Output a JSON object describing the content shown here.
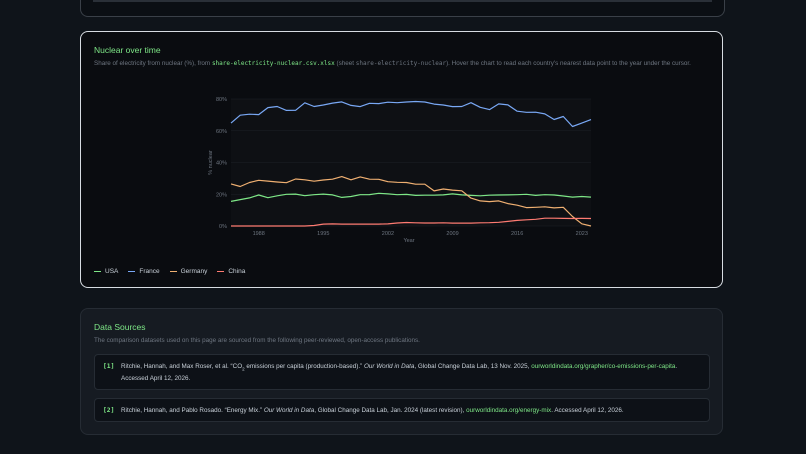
{
  "nuclear_card": {
    "title": "Nuclear over time",
    "desc_prefix": "Share of electricity from nuclear (%), from ",
    "desc_file": "share-electricity-nuclear.csv.xlsx",
    "desc_sheet_open": " (sheet ",
    "desc_sheet": "share-electricity-nuclear",
    "desc_suffix": "). Hover the chart to read each country's nearest data point to the year under the cursor."
  },
  "chart_data": {
    "type": "line",
    "xlabel": "Year",
    "ylabel": "% nuclear",
    "xlim": [
      1985,
      2024
    ],
    "ylim": [
      0,
      80
    ],
    "x_ticks": [
      1988,
      1995,
      2002,
      2009,
      2016,
      2023
    ],
    "y_ticks": [
      0,
      20,
      40,
      60,
      80
    ],
    "y_tick_labels": [
      "0%",
      "20%",
      "40%",
      "60%",
      "80%"
    ],
    "x": [
      1985,
      1986,
      1987,
      1988,
      1989,
      1990,
      1991,
      1992,
      1993,
      1994,
      1995,
      1996,
      1997,
      1998,
      1999,
      2000,
      2001,
      2002,
      2003,
      2004,
      2005,
      2006,
      2007,
      2008,
      2009,
      2010,
      2011,
      2012,
      2013,
      2014,
      2015,
      2016,
      2017,
      2018,
      2019,
      2020,
      2021,
      2022,
      2023,
      2024
    ],
    "series": [
      {
        "name": "USA",
        "color": "#7ee787",
        "values": [
          15.5,
          16.6,
          17.7,
          19.5,
          17.8,
          19.0,
          20.0,
          20.1,
          19.1,
          19.7,
          20.1,
          19.6,
          18.0,
          18.6,
          19.7,
          19.8,
          20.6,
          20.2,
          19.7,
          19.9,
          19.3,
          19.4,
          19.4,
          19.6,
          20.2,
          19.6,
          19.3,
          19.0,
          19.4,
          19.5,
          19.6,
          19.7,
          20.0,
          19.3,
          19.7,
          19.5,
          18.9,
          18.2,
          18.6,
          18.2
        ]
      },
      {
        "name": "France",
        "color": "#79a8f5",
        "values": [
          64.8,
          69.8,
          70.4,
          70.2,
          74.6,
          75.3,
          72.8,
          72.9,
          77.6,
          75.3,
          76.2,
          77.4,
          78.2,
          76.0,
          75.2,
          77.3,
          77.1,
          78.0,
          77.7,
          78.1,
          78.4,
          78.1,
          76.8,
          76.2,
          75.2,
          75.3,
          77.7,
          74.8,
          73.3,
          76.9,
          76.3,
          72.3,
          71.6,
          71.7,
          70.6,
          67.1,
          69.0,
          62.7,
          64.8,
          67.0
        ]
      },
      {
        "name": "Germany",
        "color": "#f0b072",
        "values": [
          26.5,
          24.9,
          27.4,
          28.8,
          28.3,
          27.7,
          27.3,
          29.6,
          29.1,
          28.2,
          29.0,
          29.5,
          31.1,
          29.1,
          30.9,
          29.5,
          29.4,
          27.9,
          27.5,
          27.4,
          26.3,
          26.3,
          22.1,
          23.3,
          22.6,
          22.2,
          17.6,
          15.8,
          15.4,
          15.8,
          14.1,
          13.1,
          11.6,
          11.8,
          12.1,
          11.4,
          11.8,
          6.0,
          1.4,
          0.0
        ]
      },
      {
        "name": "China",
        "color": "#ff7b72",
        "values": [
          0,
          0,
          0,
          0,
          0,
          0,
          0,
          0,
          0,
          0.3,
          1.2,
          1.3,
          1.2,
          1.2,
          1.2,
          1.2,
          1.2,
          1.3,
          1.9,
          2.2,
          2.0,
          1.9,
          1.9,
          2.0,
          1.8,
          1.8,
          1.8,
          2.0,
          2.1,
          2.3,
          2.9,
          3.5,
          3.9,
          4.2,
          4.9,
          4.9,
          4.8,
          4.7,
          4.8,
          4.7
        ]
      }
    ]
  },
  "legend": [
    "USA",
    "France",
    "Germany",
    "China"
  ],
  "sources": {
    "title": "Data Sources",
    "subtitle": "The comparison datasets used on this page are sourced from the following peer-reviewed, open-access publications.",
    "refs": [
      {
        "num": "[1]",
        "authors": "Ritchie, Hannah, and Max Roser, et al. “CO",
        "sub": "2",
        "title_rest": " emissions per capita (production-based).” ",
        "journal": "Our World in Data",
        "publisher": ", Global Change Data Lab, 13 Nov. 2025, ",
        "link": "ourworldindata.org/grapher/co-emissions-per-capita",
        "accessed": ". Accessed April 12, 2026."
      },
      {
        "num": "[2]",
        "authors": "Ritchie, Hannah, and Pablo Rosado. “Energy Mix.” ",
        "journal": "Our World in Data",
        "publisher": ", Global Change Data Lab, Jan. 2024 (latest revision), ",
        "link": "ourworldindata.org/energy-mix",
        "accessed": ". Accessed April 12, 2026."
      }
    ]
  }
}
